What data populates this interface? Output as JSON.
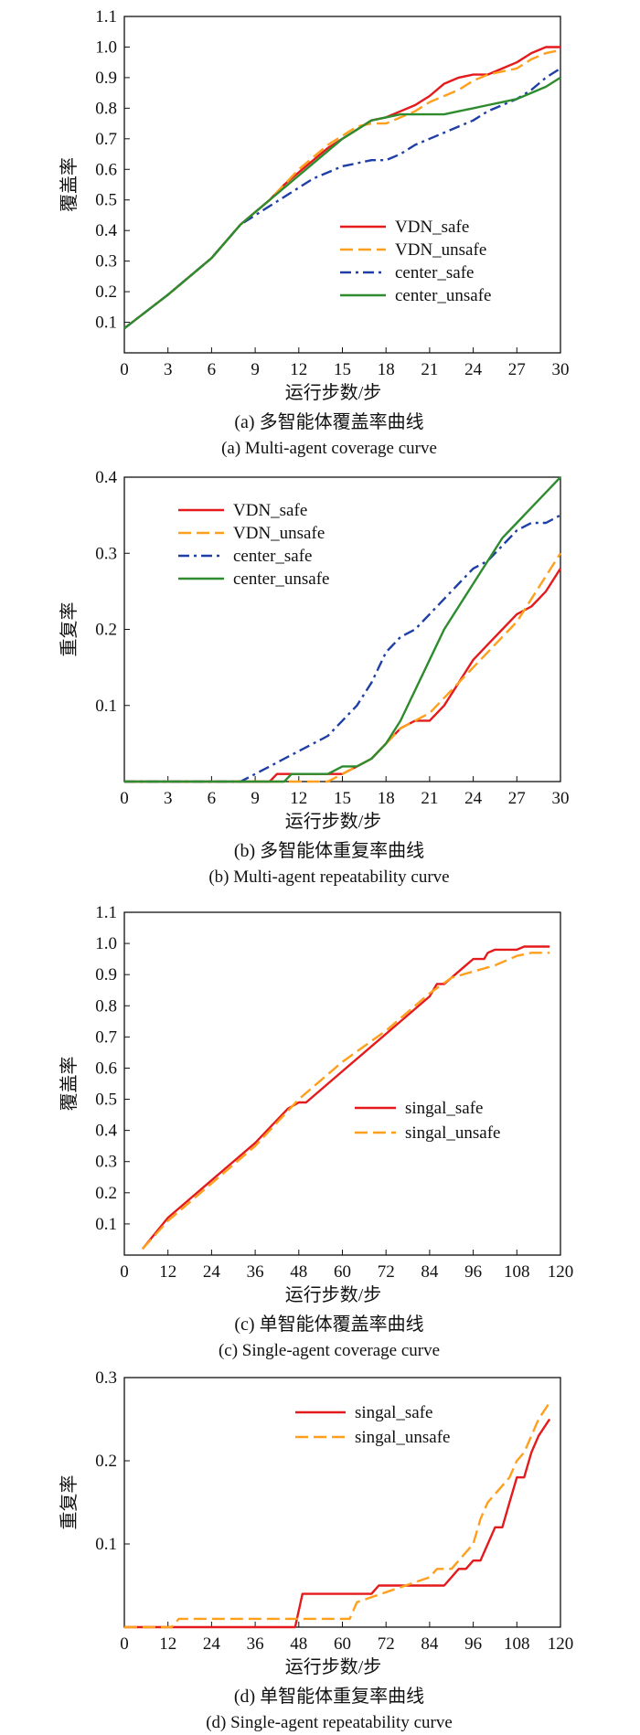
{
  "chart_data": [
    {
      "type": "line",
      "title": "(a) 多智能体覆盖率曲线",
      "subtitle": "(a) Multi-agent coverage curve",
      "xlabel": "运行步数/步",
      "ylabel": "覆盖率",
      "xlim": [
        0,
        30
      ],
      "ylim": [
        0,
        1.1
      ],
      "xticks": [
        "0",
        "3",
        "6",
        "9",
        "12",
        "15",
        "18",
        "21",
        "24",
        "27",
        "30"
      ],
      "yticks": [
        "0.1",
        "0.2",
        "0.3",
        "0.4",
        "0.5",
        "0.6",
        "0.7",
        "0.8",
        "0.9",
        "1.0",
        "1.1"
      ],
      "legend_position": "center-right",
      "series": [
        {
          "name": "VDN_safe",
          "color": "#e41a1c",
          "dash": "solid",
          "x": [
            0,
            3,
            6,
            8,
            9,
            10,
            11,
            12,
            13,
            14,
            15,
            16,
            17,
            18,
            19,
            20,
            21,
            22,
            23,
            24,
            25,
            26,
            27,
            28,
            29,
            30
          ],
          "y": [
            0.08,
            0.19,
            0.31,
            0.42,
            0.46,
            0.5,
            0.55,
            0.59,
            0.63,
            0.67,
            0.7,
            0.73,
            0.76,
            0.77,
            0.79,
            0.81,
            0.84,
            0.88,
            0.9,
            0.91,
            0.91,
            0.93,
            0.95,
            0.98,
            1.0,
            1.0
          ]
        },
        {
          "name": "VDN_unsafe",
          "color": "#ff9f1c",
          "dash": "dashed",
          "x": [
            0,
            3,
            6,
            8,
            9,
            10,
            11,
            12,
            13,
            14,
            15,
            16,
            17,
            18,
            19,
            20,
            21,
            22,
            23,
            24,
            25,
            26,
            27,
            28,
            29,
            30
          ],
          "y": [
            0.08,
            0.19,
            0.31,
            0.42,
            0.46,
            0.5,
            0.55,
            0.6,
            0.64,
            0.68,
            0.71,
            0.74,
            0.75,
            0.75,
            0.77,
            0.79,
            0.82,
            0.84,
            0.86,
            0.89,
            0.91,
            0.92,
            0.93,
            0.96,
            0.98,
            0.99
          ]
        },
        {
          "name": "center_safe",
          "color": "#1f3fa6",
          "dash": "dashdot",
          "x": [
            0,
            3,
            6,
            8,
            9,
            10,
            11,
            12,
            13,
            14,
            15,
            16,
            17,
            18,
            19,
            20,
            21,
            22,
            23,
            24,
            25,
            26,
            27,
            28,
            29,
            30
          ],
          "y": [
            0.08,
            0.19,
            0.31,
            0.42,
            0.45,
            0.48,
            0.51,
            0.54,
            0.57,
            0.59,
            0.61,
            0.62,
            0.63,
            0.63,
            0.65,
            0.68,
            0.7,
            0.72,
            0.74,
            0.76,
            0.79,
            0.81,
            0.83,
            0.86,
            0.9,
            0.93
          ]
        },
        {
          "name": "center_unsafe",
          "color": "#2e8b2e",
          "dash": "solid",
          "x": [
            0,
            3,
            6,
            8,
            9,
            10,
            11,
            12,
            13,
            14,
            15,
            16,
            17,
            18,
            19,
            20,
            21,
            22,
            23,
            24,
            25,
            26,
            27,
            28,
            29,
            30
          ],
          "y": [
            0.08,
            0.19,
            0.31,
            0.42,
            0.46,
            0.5,
            0.54,
            0.58,
            0.62,
            0.66,
            0.7,
            0.73,
            0.76,
            0.77,
            0.78,
            0.78,
            0.78,
            0.78,
            0.79,
            0.8,
            0.81,
            0.82,
            0.83,
            0.85,
            0.87,
            0.9
          ]
        }
      ]
    },
    {
      "type": "line",
      "title": "(b) 多智能体重复率曲线",
      "subtitle": "(b) Multi-agent repeatability curve",
      "xlabel": "运行步数/步",
      "ylabel": "重复率",
      "xlim": [
        0,
        30
      ],
      "ylim": [
        0,
        0.4
      ],
      "xticks": [
        "0",
        "3",
        "6",
        "9",
        "12",
        "15",
        "18",
        "21",
        "24",
        "27",
        "30"
      ],
      "yticks": [
        "0.1",
        "0.2",
        "0.3",
        "0.4"
      ],
      "legend_position": "top-left",
      "series": [
        {
          "name": "VDN_safe",
          "color": "#e41a1c",
          "dash": "solid",
          "x": [
            0,
            10,
            10.5,
            15,
            16,
            17,
            18,
            19,
            20,
            21,
            22,
            23,
            24,
            25,
            26,
            27,
            28,
            29,
            30
          ],
          "y": [
            0,
            0,
            0.01,
            0.01,
            0.02,
            0.03,
            0.05,
            0.07,
            0.08,
            0.08,
            0.1,
            0.13,
            0.16,
            0.18,
            0.2,
            0.22,
            0.23,
            0.25,
            0.28
          ]
        },
        {
          "name": "VDN_unsafe",
          "color": "#ff9f1c",
          "dash": "dashed",
          "x": [
            0,
            14,
            15,
            16,
            17,
            18,
            19,
            20,
            21,
            22,
            23,
            24,
            25,
            26,
            27,
            28,
            29,
            30
          ],
          "y": [
            0,
            0,
            0.01,
            0.02,
            0.03,
            0.05,
            0.07,
            0.08,
            0.09,
            0.11,
            0.13,
            0.15,
            0.17,
            0.19,
            0.21,
            0.24,
            0.27,
            0.3
          ]
        },
        {
          "name": "center_safe",
          "color": "#1f3fa6",
          "dash": "dashdot",
          "x": [
            0,
            8,
            9,
            10,
            11,
            12,
            13,
            14,
            15,
            16,
            17,
            18,
            19,
            20,
            21,
            22,
            23,
            24,
            25,
            26,
            27,
            28,
            29,
            30
          ],
          "y": [
            0,
            0,
            0.01,
            0.02,
            0.03,
            0.04,
            0.05,
            0.06,
            0.08,
            0.1,
            0.13,
            0.17,
            0.19,
            0.2,
            0.22,
            0.24,
            0.26,
            0.28,
            0.29,
            0.31,
            0.33,
            0.34,
            0.34,
            0.35
          ]
        },
        {
          "name": "center_unsafe",
          "color": "#2e8b2e",
          "dash": "solid",
          "x": [
            0,
            11,
            11.5,
            14,
            15,
            16,
            17,
            18,
            19,
            20,
            21,
            22,
            23,
            24,
            25,
            26,
            27,
            28,
            29,
            30
          ],
          "y": [
            0,
            0,
            0.01,
            0.01,
            0.02,
            0.02,
            0.03,
            0.05,
            0.08,
            0.12,
            0.16,
            0.2,
            0.23,
            0.26,
            0.29,
            0.32,
            0.34,
            0.36,
            0.38,
            0.4
          ]
        }
      ]
    },
    {
      "type": "line",
      "title": "(c) 单智能体覆盖率曲线",
      "subtitle": "(c) Single-agent coverage curve",
      "xlabel": "运行步数/步",
      "ylabel": "覆盖率",
      "xlim": [
        0,
        120
      ],
      "ylim": [
        0,
        1.1
      ],
      "xticks": [
        "0",
        "12",
        "24",
        "36",
        "48",
        "60",
        "72",
        "84",
        "96",
        "108",
        "120"
      ],
      "yticks": [
        "0.1",
        "0.2",
        "0.3",
        "0.4",
        "0.5",
        "0.6",
        "0.7",
        "0.8",
        "0.9",
        "1.0",
        "1.1"
      ],
      "legend_position": "center-right",
      "series": [
        {
          "name": "singal_safe",
          "color": "#e41a1c",
          "dash": "solid",
          "x": [
            5,
            12,
            24,
            36,
            45,
            48,
            50,
            60,
            72,
            84,
            86,
            88,
            90,
            96,
            99,
            100,
            102,
            108,
            110,
            117
          ],
          "y": [
            0.02,
            0.12,
            0.24,
            0.36,
            0.47,
            0.49,
            0.49,
            0.59,
            0.71,
            0.83,
            0.87,
            0.87,
            0.89,
            0.95,
            0.95,
            0.97,
            0.98,
            0.98,
            0.99,
            0.99
          ]
        },
        {
          "name": "singal_unsafe",
          "color": "#ff9f1c",
          "dash": "dashed",
          "x": [
            5,
            12,
            24,
            36,
            48,
            60,
            72,
            84,
            90,
            96,
            102,
            108,
            112,
            117
          ],
          "y": [
            0.02,
            0.11,
            0.23,
            0.35,
            0.5,
            0.62,
            0.72,
            0.84,
            0.89,
            0.91,
            0.93,
            0.96,
            0.97,
            0.97
          ]
        }
      ]
    },
    {
      "type": "line",
      "title": "(d) 单智能体重复率曲线",
      "subtitle": "(d) Single-agent repeatability curve",
      "xlabel": "运行步数/步",
      "ylabel": "重复率",
      "xlim": [
        0,
        120
      ],
      "ylim": [
        0,
        0.3
      ],
      "xticks": [
        "0",
        "12",
        "24",
        "36",
        "48",
        "60",
        "72",
        "84",
        "96",
        "108",
        "120"
      ],
      "yticks": [
        "0.1",
        "0.2",
        "0.3"
      ],
      "legend_position": "top-right",
      "series": [
        {
          "name": "singal_safe",
          "color": "#e41a1c",
          "dash": "solid",
          "x": [
            0,
            47,
            49,
            68,
            70,
            88,
            90,
            92,
            94,
            96,
            98,
            100,
            102,
            104,
            106,
            108,
            110,
            112,
            114,
            117
          ],
          "y": [
            0,
            0,
            0.04,
            0.04,
            0.05,
            0.05,
            0.06,
            0.07,
            0.07,
            0.08,
            0.08,
            0.1,
            0.12,
            0.12,
            0.15,
            0.18,
            0.18,
            0.21,
            0.23,
            0.25
          ]
        },
        {
          "name": "singal_unsafe",
          "color": "#ff9f1c",
          "dash": "dashed",
          "x": [
            0,
            13,
            15,
            62,
            64,
            84,
            86,
            90,
            92,
            96,
            98,
            100,
            102,
            104,
            106,
            108,
            110,
            112,
            114,
            117
          ],
          "y": [
            0,
            0,
            0.01,
            0.01,
            0.03,
            0.06,
            0.07,
            0.07,
            0.08,
            0.1,
            0.13,
            0.15,
            0.16,
            0.17,
            0.18,
            0.2,
            0.21,
            0.23,
            0.25,
            0.27
          ]
        }
      ]
    }
  ]
}
